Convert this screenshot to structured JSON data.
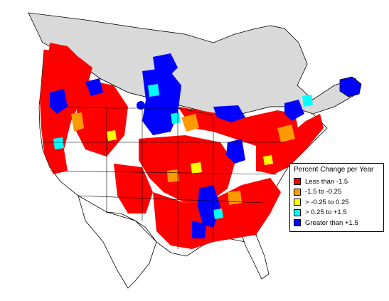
{
  "legend": {
    "title": "Percent Change per Year",
    "items": [
      {
        "label": "Less than -1.5",
        "color": "#ff0000"
      },
      {
        "label": "-1.5 to -0.25",
        "color": "#ff9900"
      },
      {
        "label": "> -0.25 to 0.25",
        "color": "#ffff00"
      },
      {
        "label": "> 0.25 to +1.5",
        "color": "#00ffff"
      },
      {
        "label": "Greater than +1.5",
        "color": "#0000ff"
      }
    ]
  },
  "map_colors": {
    "land": "#ffffff",
    "no_data": "#d9d9d9",
    "borders": "#000000"
  }
}
